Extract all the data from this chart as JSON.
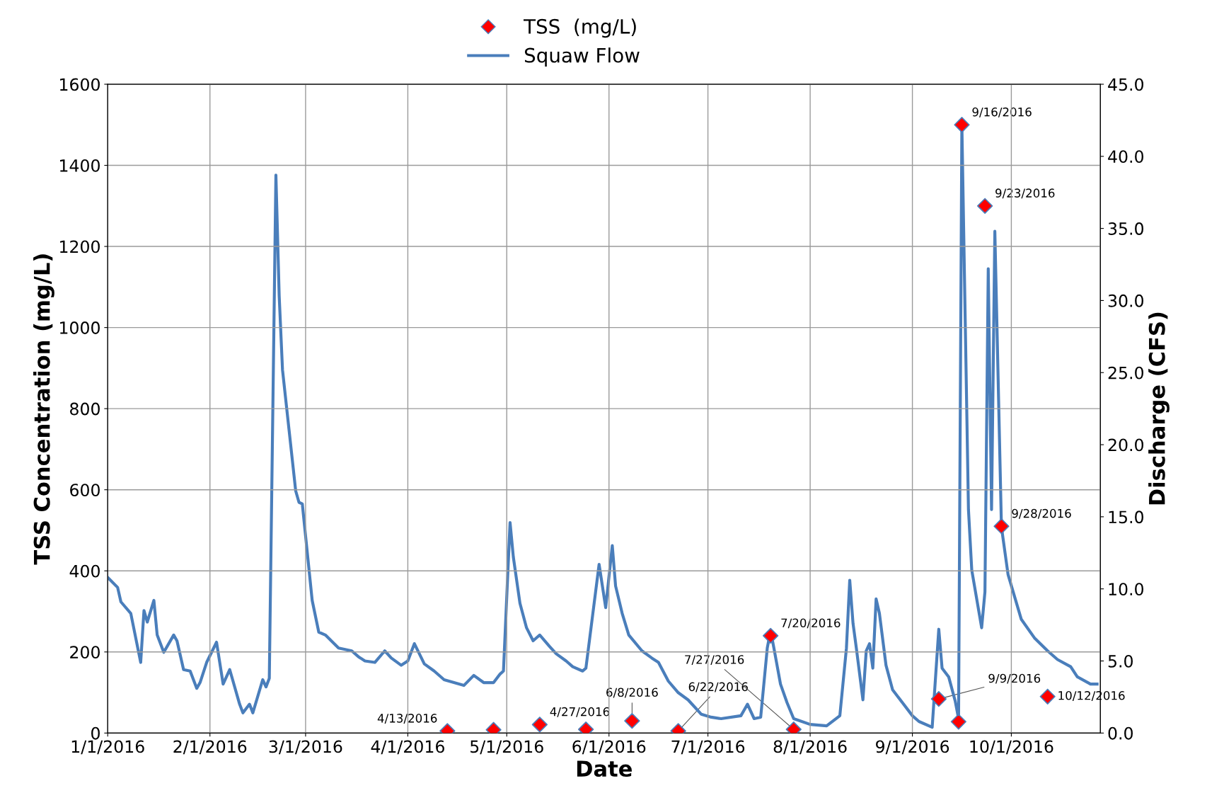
{
  "chart_data": {
    "type": "line",
    "xlabel": "Date",
    "ylabel": "TSS Concentration (mg/L)",
    "y2label": "Discharge (CFS)",
    "xlim": [
      "2016-01-01",
      "2016-10-28"
    ],
    "xticks": [
      {
        "value": "2016-01-01",
        "label": "1/1/2016"
      },
      {
        "value": "2016-02-01",
        "label": "2/1/2016"
      },
      {
        "value": "2016-03-01",
        "label": "3/1/2016"
      },
      {
        "value": "2016-04-01",
        "label": "4/1/2016"
      },
      {
        "value": "2016-05-01",
        "label": "5/1/2016"
      },
      {
        "value": "2016-06-01",
        "label": "6/1/2016"
      },
      {
        "value": "2016-07-01",
        "label": "7/1/2016"
      },
      {
        "value": "2016-08-01",
        "label": "8/1/2016"
      },
      {
        "value": "2016-09-01",
        "label": "9/1/2016"
      },
      {
        "value": "2016-10-01",
        "label": "10/1/2016"
      }
    ],
    "ylim": [
      0,
      1600
    ],
    "yticks": [
      0,
      200,
      400,
      600,
      800,
      1000,
      1200,
      1400,
      1600
    ],
    "y2lim": [
      0,
      45
    ],
    "y2ticks": [
      {
        "value": 0,
        "label": "0.0"
      },
      {
        "value": 5,
        "label": "5.0"
      },
      {
        "value": 10,
        "label": "10.0"
      },
      {
        "value": 15,
        "label": "15.0"
      },
      {
        "value": 20,
        "label": "20.0"
      },
      {
        "value": 25,
        "label": "25.0"
      },
      {
        "value": 30,
        "label": "30.0"
      },
      {
        "value": 35,
        "label": "35.0"
      },
      {
        "value": 40,
        "label": "40.0"
      },
      {
        "value": 45,
        "label": "45.0"
      }
    ],
    "grid": true,
    "legend": "top",
    "series": [
      {
        "name": "TSS  (mg/L)",
        "type": "scatter",
        "marker": "diamond",
        "color": "#ff0000",
        "x": [
          "2016-04-13",
          "2016-04-27",
          "2016-05-11",
          "2016-05-25",
          "2016-06-08",
          "2016-06-22",
          "2016-07-20",
          "2016-07-27",
          "2016-09-09",
          "2016-09-15",
          "2016-09-16",
          "2016-09-23",
          "2016-09-28",
          "2016-10-12"
        ],
        "values": [
          5,
          8,
          21,
          9,
          30,
          5,
          240,
          9,
          84,
          28,
          1500,
          1300,
          510,
          90
        ]
      },
      {
        "name": "Squaw Flow",
        "type": "line",
        "marker": "none",
        "line_style": "solid",
        "axis": "y2",
        "color": "#4a7ebb",
        "x": [
          "2016-01-01",
          "2016-01-04",
          "2016-01-05",
          "2016-01-08",
          "2016-01-11",
          "2016-01-12",
          "2016-01-13",
          "2016-01-15",
          "2016-01-16",
          "2016-01-18",
          "2016-01-21",
          "2016-01-22",
          "2016-01-24",
          "2016-01-26",
          "2016-01-28",
          "2016-01-29",
          "2016-01-31",
          "2016-02-03",
          "2016-02-05",
          "2016-02-07",
          "2016-02-10",
          "2016-02-11",
          "2016-02-13",
          "2016-02-14",
          "2016-02-17",
          "2016-02-18",
          "2016-02-19",
          "2016-02-21",
          "2016-02-22",
          "2016-02-23",
          "2016-02-25",
          "2016-02-27",
          "2016-02-28",
          "2016-02-29",
          "2016-03-03",
          "2016-03-05",
          "2016-03-07",
          "2016-03-11",
          "2016-03-15",
          "2016-03-17",
          "2016-03-19",
          "2016-03-22",
          "2016-03-25",
          "2016-03-27",
          "2016-03-30",
          "2016-04-01",
          "2016-04-03",
          "2016-04-06",
          "2016-04-09",
          "2016-04-12",
          "2016-04-15",
          "2016-04-18",
          "2016-04-21",
          "2016-04-24",
          "2016-04-27",
          "2016-04-29",
          "2016-04-30",
          "2016-05-02",
          "2016-05-03",
          "2016-05-05",
          "2016-05-07",
          "2016-05-09",
          "2016-05-11",
          "2016-05-14",
          "2016-05-16",
          "2016-05-19",
          "2016-05-21",
          "2016-05-24",
          "2016-05-25",
          "2016-05-29",
          "2016-05-31",
          "2016-06-02",
          "2016-06-03",
          "2016-06-05",
          "2016-06-07",
          "2016-06-11",
          "2016-06-14",
          "2016-06-16",
          "2016-06-19",
          "2016-06-22",
          "2016-06-25",
          "2016-06-29",
          "2016-07-02",
          "2016-07-05",
          "2016-07-11",
          "2016-07-12",
          "2016-07-13",
          "2016-07-15",
          "2016-07-17",
          "2016-07-19",
          "2016-07-20",
          "2016-07-21",
          "2016-07-23",
          "2016-07-25",
          "2016-07-27",
          "2016-08-01",
          "2016-08-06",
          "2016-08-10",
          "2016-08-12",
          "2016-08-13",
          "2016-08-14",
          "2016-08-15",
          "2016-08-17",
          "2016-08-18",
          "2016-08-19",
          "2016-08-20",
          "2016-08-21",
          "2016-08-22",
          "2016-08-24",
          "2016-08-26",
          "2016-08-29",
          "2016-09-01",
          "2016-09-03",
          "2016-09-07",
          "2016-09-09",
          "2016-09-10",
          "2016-09-12",
          "2016-09-14",
          "2016-09-15",
          "2016-09-16",
          "2016-09-18",
          "2016-09-19",
          "2016-09-22",
          "2016-09-23",
          "2016-09-24",
          "2016-09-25",
          "2016-09-26",
          "2016-09-28",
          "2016-09-30",
          "2016-10-04",
          "2016-10-08",
          "2016-10-12",
          "2016-10-15",
          "2016-10-19",
          "2016-10-21",
          "2016-10-25",
          "2016-10-27"
        ],
        "values": [
          10.8,
          10.1,
          9.1,
          8.3,
          4.9,
          8.5,
          7.7,
          9.2,
          6.8,
          5.6,
          6.8,
          6.4,
          4.4,
          4.3,
          3.1,
          3.5,
          4.9,
          6.3,
          3.4,
          4.4,
          2.0,
          1.4,
          2.0,
          1.4,
          3.7,
          3.2,
          3.8,
          38.7,
          30.3,
          25.2,
          21.0,
          16.8,
          16.0,
          15.9,
          9.2,
          7.0,
          6.8,
          5.9,
          5.7,
          5.3,
          5.0,
          4.9,
          5.7,
          5.2,
          4.7,
          5.0,
          6.2,
          4.8,
          4.3,
          3.7,
          3.5,
          3.3,
          4.0,
          3.5,
          3.5,
          4.1,
          4.3,
          14.6,
          12.2,
          9.0,
          7.3,
          6.4,
          6.8,
          6.0,
          5.5,
          5.0,
          4.6,
          4.3,
          4.5,
          11.7,
          8.7,
          13.0,
          10.2,
          8.3,
          6.8,
          5.7,
          5.2,
          4.9,
          3.6,
          2.8,
          2.3,
          1.3,
          1.1,
          1.0,
          1.2,
          1.6,
          2.0,
          1.0,
          1.1,
          5.9,
          7.1,
          5.9,
          3.4,
          2.1,
          1.0,
          0.6,
          0.5,
          1.2,
          5.9,
          10.6,
          7.6,
          5.9,
          2.3,
          5.7,
          6.2,
          4.5,
          9.3,
          8.3,
          4.7,
          3.0,
          2.1,
          1.2,
          0.8,
          0.4,
          7.2,
          4.5,
          3.9,
          2.2,
          1.0,
          42.2,
          15.5,
          11.3,
          7.3,
          9.8,
          32.2,
          15.5,
          34.8,
          14.3,
          11.0,
          7.9,
          6.6,
          5.7,
          5.1,
          4.6,
          3.9,
          3.4,
          3.4
        ]
      }
    ],
    "annotations": [
      {
        "text": "4/13/2016",
        "x": "2016-04-13",
        "y": 5
      },
      {
        "text": "4/27/2016",
        "x": "2016-05-11",
        "y": 21
      },
      {
        "text": "6/8/2016",
        "x": "2016-06-08",
        "y": 30
      },
      {
        "text": "6/22/2016",
        "x": "2016-06-22",
        "y": 5
      },
      {
        "text": "7/20/2016",
        "x": "2016-07-20",
        "y": 240
      },
      {
        "text": "7/27/2016",
        "x": "2016-07-27",
        "y": 9
      },
      {
        "text": "9/9/2016",
        "x": "2016-09-09",
        "y": 84
      },
      {
        "text": "9/16/2016",
        "x": "2016-09-16",
        "y": 1500
      },
      {
        "text": "9/23/2016",
        "x": "2016-09-23",
        "y": 1300
      },
      {
        "text": "9/28/2016",
        "x": "2016-09-28",
        "y": 510
      },
      {
        "text": "10/12/2016",
        "x": "2016-10-12",
        "y": 90
      }
    ]
  }
}
